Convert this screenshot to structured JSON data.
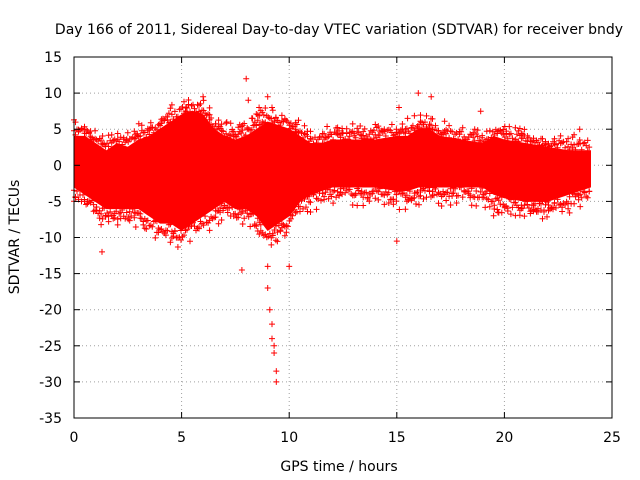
{
  "chart_data": {
    "type": "scatter",
    "title": "Day 166 of 2011, Sidereal Day-to-day VTEC variation (SDTVAR) for receiver bndy",
    "xlabel": "GPS time / hours",
    "ylabel": "SDTVAR / TECUs",
    "xlim": [
      0,
      25
    ],
    "ylim": [
      -35,
      15
    ],
    "x_ticks": [
      0,
      5,
      10,
      15,
      20,
      25
    ],
    "y_ticks": [
      15,
      10,
      5,
      0,
      -5,
      -10,
      -15,
      -20,
      -25,
      -30,
      -35
    ],
    "grid": true,
    "marker": "+",
    "series_color": "#ff0000",
    "envelope": {
      "description": "dense band of points",
      "hours": [
        0.0,
        0.5,
        1.0,
        1.5,
        2.0,
        2.5,
        3.0,
        3.5,
        4.0,
        4.5,
        5.0,
        5.5,
        6.0,
        6.5,
        7.0,
        7.5,
        8.0,
        8.5,
        9.0,
        9.5,
        10.0,
        10.5,
        11.0,
        11.5,
        12.0,
        13.0,
        14.0,
        15.0,
        15.5,
        16.0,
        16.5,
        17.0,
        18.0,
        19.0,
        19.5,
        20.0,
        21.0,
        22.0,
        23.0,
        24.0
      ],
      "upper": [
        4,
        4,
        3,
        2,
        3,
        2.5,
        3.5,
        4,
        5,
        6,
        7,
        7.5,
        7,
        5,
        4,
        3.5,
        4,
        5,
        6,
        5.5,
        5,
        4,
        3,
        3,
        3.5,
        3.5,
        3.5,
        4,
        4,
        5,
        5,
        4,
        3.5,
        3,
        4,
        3.5,
        3,
        2.5,
        2,
        2
      ],
      "lower": [
        -3,
        -4,
        -5,
        -6,
        -6,
        -6,
        -6,
        -7,
        -8,
        -8,
        -9,
        -8,
        -7,
        -6,
        -5,
        -6,
        -6,
        -7,
        -9,
        -8,
        -7,
        -5,
        -4,
        -3.5,
        -3,
        -3,
        -3,
        -3.5,
        -3.5,
        -3,
        -3,
        -3,
        -3,
        -3,
        -4,
        -4.5,
        -5,
        -5,
        -4,
        -3
      ]
    },
    "outliers": [
      {
        "x": 1.3,
        "y": -12
      },
      {
        "x": 2.5,
        "y": 4.5
      },
      {
        "x": 4.0,
        "y": 5.5
      },
      {
        "x": 5.2,
        "y": 8
      },
      {
        "x": 6.0,
        "y": 9.5
      },
      {
        "x": 6.3,
        "y": 7
      },
      {
        "x": 7.1,
        "y": 6
      },
      {
        "x": 7.8,
        "y": -14.5
      },
      {
        "x": 8.0,
        "y": 12
      },
      {
        "x": 8.1,
        "y": 9
      },
      {
        "x": 8.3,
        "y": 6.5
      },
      {
        "x": 8.6,
        "y": 8
      },
      {
        "x": 9.0,
        "y": -14
      },
      {
        "x": 9.0,
        "y": -17
      },
      {
        "x": 9.1,
        "y": -20
      },
      {
        "x": 9.2,
        "y": -22
      },
      {
        "x": 9.2,
        "y": -24
      },
      {
        "x": 9.3,
        "y": -25
      },
      {
        "x": 9.3,
        "y": -26
      },
      {
        "x": 9.4,
        "y": -28.5
      },
      {
        "x": 9.4,
        "y": -30
      },
      {
        "x": 9.0,
        "y": 9.5
      },
      {
        "x": 9.2,
        "y": 8
      },
      {
        "x": 10.0,
        "y": -14
      },
      {
        "x": 10.3,
        "y": 5
      },
      {
        "x": 12.5,
        "y": 4.5
      },
      {
        "x": 15.0,
        "y": -10.5
      },
      {
        "x": 15.1,
        "y": 8
      },
      {
        "x": 15.5,
        "y": 6.5
      },
      {
        "x": 16.0,
        "y": 10
      },
      {
        "x": 16.6,
        "y": 9.5
      },
      {
        "x": 18.9,
        "y": 7.5
      },
      {
        "x": 19.5,
        "y": -7
      },
      {
        "x": 19.7,
        "y": -6.5
      },
      {
        "x": 23.5,
        "y": 5
      },
      {
        "x": 23.5,
        "y": 3.5
      }
    ]
  }
}
